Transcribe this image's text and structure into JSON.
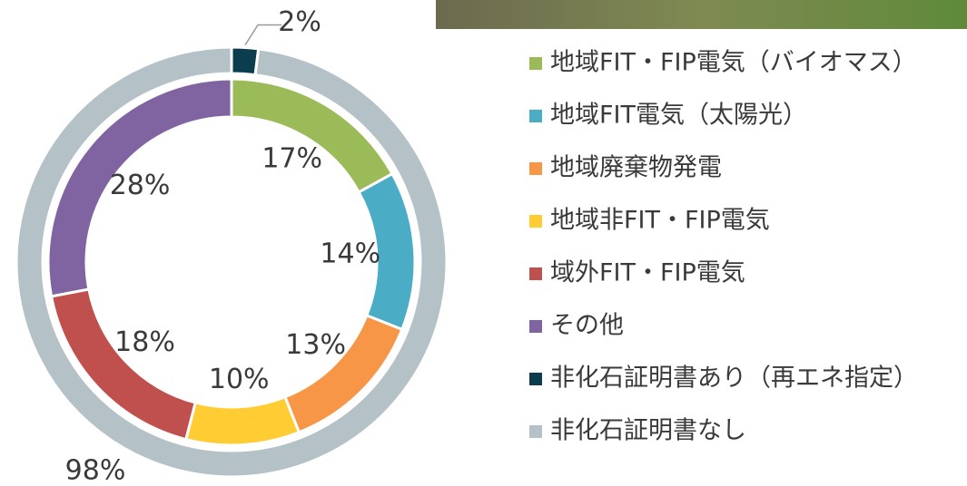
{
  "chart_data": {
    "type": "donut",
    "rings": [
      {
        "categories": [
          "地域FIT・FIP電気（バイオマス）",
          "地域FIT電気（太陽光）",
          "地域廃棄物発電",
          "地域非FIT・FIP電気",
          "域外FIT・FIP電気",
          "その他"
        ],
        "colors": [
          "#9bbb59",
          "#4bacc6",
          "#f79646",
          "#ffcc33",
          "#c0504d",
          "#8064a2"
        ],
        "values": [
          17,
          14,
          13,
          10,
          18,
          28
        ],
        "value_labels": [
          "17%",
          "14%",
          "13%",
          "10%",
          "18%",
          "28%"
        ]
      },
      {
        "categories": [
          "非化石証明書あり（再エネ指定）",
          "非化石証明書なし"
        ],
        "colors": [
          "#0b3d4f",
          "#b4c1c7"
        ],
        "values": [
          2,
          98
        ],
        "value_labels": [
          "2%",
          "98%"
        ]
      }
    ]
  }
}
